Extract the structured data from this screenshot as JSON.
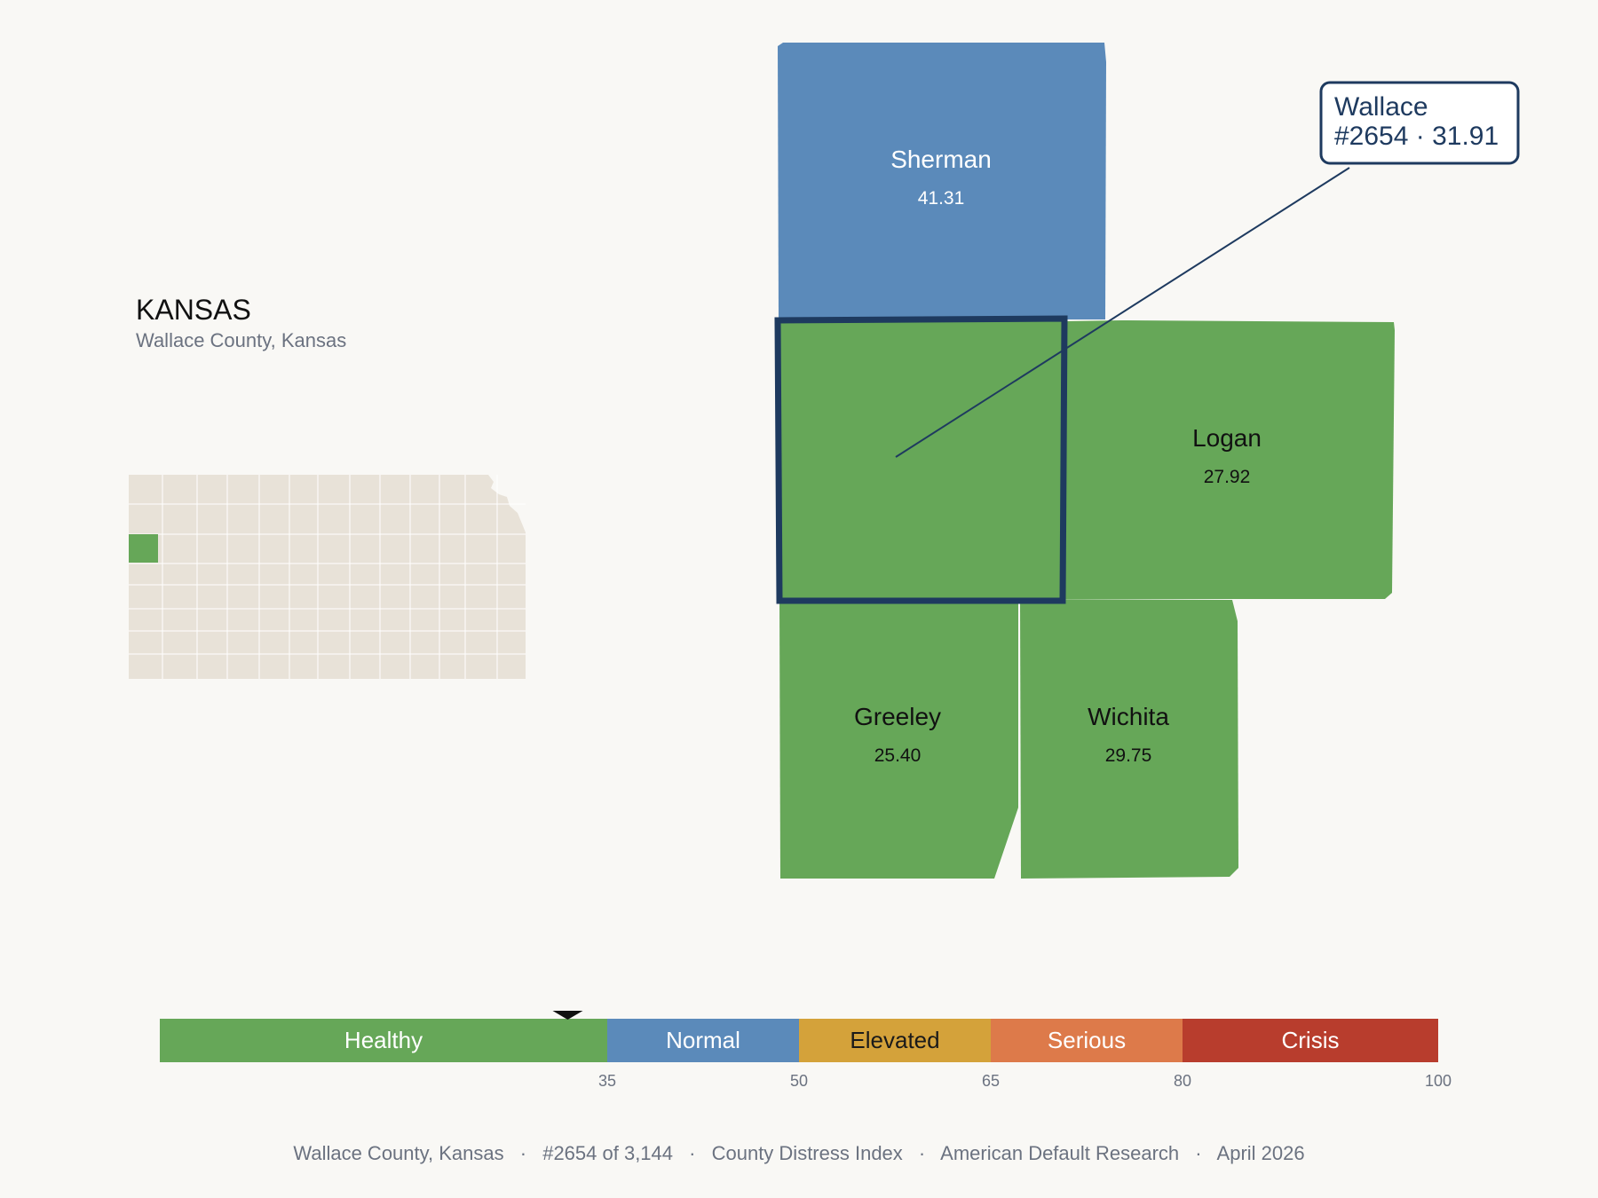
{
  "state": {
    "name": "KANSAS",
    "subtitle": "Wallace County, Kansas"
  },
  "counties": [
    {
      "name": "Sherman",
      "score": "41.31",
      "color": "#5b8aba",
      "text_color": "#ffffff"
    },
    {
      "name": "Logan",
      "score": "27.92",
      "color": "#66a758",
      "text_color": "#111111"
    },
    {
      "name": "Greeley",
      "score": "25.40",
      "color": "#66a758",
      "text_color": "#111111"
    },
    {
      "name": "Wichita",
      "score": "29.75",
      "color": "#66a758",
      "text_color": "#111111"
    }
  ],
  "focus": {
    "name": "Wallace",
    "rank_score": "#2654 · 31.91",
    "color": "#66a758",
    "outline_color": "#1e3a5f",
    "score": 31.91
  },
  "scale": {
    "min": 0,
    "max": 100,
    "bands": [
      {
        "label": "Healthy",
        "from": 0,
        "to": 35,
        "color": "#66a758",
        "text_color": "#ffffff"
      },
      {
        "label": "Normal",
        "from": 35,
        "to": 50,
        "color": "#5b8aba",
        "text_color": "#ffffff"
      },
      {
        "label": "Elevated",
        "from": 50,
        "to": 65,
        "color": "#d4a23a",
        "text_color": "#1a1a1a"
      },
      {
        "label": "Serious",
        "from": 65,
        "to": 80,
        "color": "#dd7a4a",
        "text_color": "#ffffff"
      },
      {
        "label": "Crisis",
        "from": 80,
        "to": 100,
        "color": "#b83d2d",
        "text_color": "#ffffff"
      }
    ],
    "ticks": [
      "35",
      "50",
      "65",
      "80",
      "100"
    ],
    "marker_value": 31.91
  },
  "colors": {
    "background": "#f9f8f5",
    "inset_fill": "#e8e2d8",
    "inset_highlight": "#66a758",
    "footer_text": "#6b7280"
  },
  "footer": {
    "county": "Wallace County, Kansas",
    "rank": "#2654 of 3,144",
    "index": "County Distress Index",
    "source": "American Default Research",
    "date": "April 2026",
    "separator": "·"
  }
}
